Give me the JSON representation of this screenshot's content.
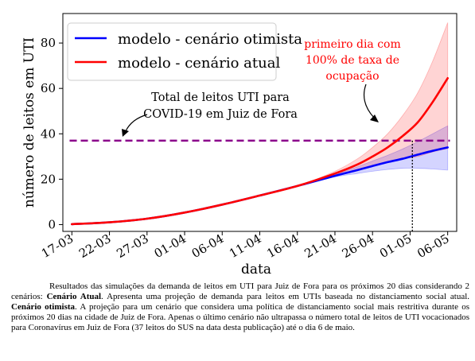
{
  "chart_data": {
    "type": "line",
    "xlabel": "data",
    "ylabel": "número de leitos em UTI",
    "x_tick_labels": [
      "17-03",
      "22-03",
      "27-03",
      "01-04",
      "06-04",
      "11-04",
      "16-04",
      "21-04",
      "26-04",
      "01-05",
      "06-05"
    ],
    "y_ticks": [
      0,
      20,
      40,
      60,
      80
    ],
    "ylim": [
      -3,
      93
    ],
    "grid": false,
    "legend_position": "upper-left",
    "x_days": [
      0,
      5,
      10,
      15,
      20,
      25,
      30,
      35,
      38,
      40,
      42,
      44,
      46,
      48,
      50
    ],
    "series": [
      {
        "name": "modelo - cenário otimista",
        "color": "#0000ff",
        "mean": [
          0.2,
          1.0,
          2.6,
          5.3,
          8.8,
          12.8,
          17.0,
          21.5,
          24.0,
          25.8,
          27.5,
          29.0,
          30.8,
          32.5,
          34.0
        ],
        "lower": [
          0.2,
          1.0,
          2.6,
          5.3,
          8.8,
          12.8,
          17.0,
          21.0,
          22.5,
          23.5,
          24.3,
          24.8,
          24.8,
          24.5,
          24.0
        ],
        "upper": [
          0.2,
          1.0,
          2.6,
          5.3,
          8.8,
          12.8,
          17.0,
          22.0,
          25.5,
          28.0,
          30.5,
          33.3,
          36.5,
          40.0,
          43.5
        ]
      },
      {
        "name": "modelo - cenário atual",
        "color": "#ff0000",
        "mean": [
          0.2,
          1.0,
          2.6,
          5.3,
          8.8,
          12.8,
          17.0,
          22.5,
          26.5,
          30.0,
          34.0,
          39.0,
          45.0,
          54.0,
          64.5
        ],
        "lower": [
          0.2,
          1.0,
          2.6,
          5.3,
          8.8,
          12.8,
          17.0,
          21.8,
          24.0,
          26.0,
          27.5,
          29.0,
          30.0,
          32.0,
          33.5
        ],
        "upper": [
          0.2,
          1.0,
          2.6,
          5.3,
          8.8,
          12.8,
          17.0,
          23.5,
          29.0,
          34.0,
          40.0,
          48.0,
          58.0,
          72.0,
          89.0
        ]
      }
    ],
    "reference_line": {
      "y": 37,
      "color": "#8b008b",
      "style": "dashed"
    },
    "crossing_day": 45.3,
    "annotations": {
      "capacity_lines": [
        "Total de leitos UTI para",
        "COVID-19 em Juiz de Fora"
      ],
      "first_day_lines": [
        "primeiro dia com",
        "100% de taxa de",
        "ocupação"
      ]
    }
  },
  "caption": {
    "part1": "Resultados das simulações da demanda de leitos em UTI para Juiz de Fora para os próximos 20 dias considerando 2 cenários: ",
    "bold1": "Cenário Atual",
    "part2": ". Apresenta uma projeção de demanda para leitos em UTIs baseada no distanciamento social atual. ",
    "bold2": "Cenário otimista",
    "part3": ". A projeção para um cenário que considera uma política de distanciamento social mais restritiva durante os próximos 20 dias na cidade de Juiz de Fora. Apenas o último cenário não ultrapassa o número total de leitos de UTI vocacionados para Coronavírus em Juiz de Fora (37 leitos do SUS na data desta publicação) até o dia 6 de maio."
  }
}
